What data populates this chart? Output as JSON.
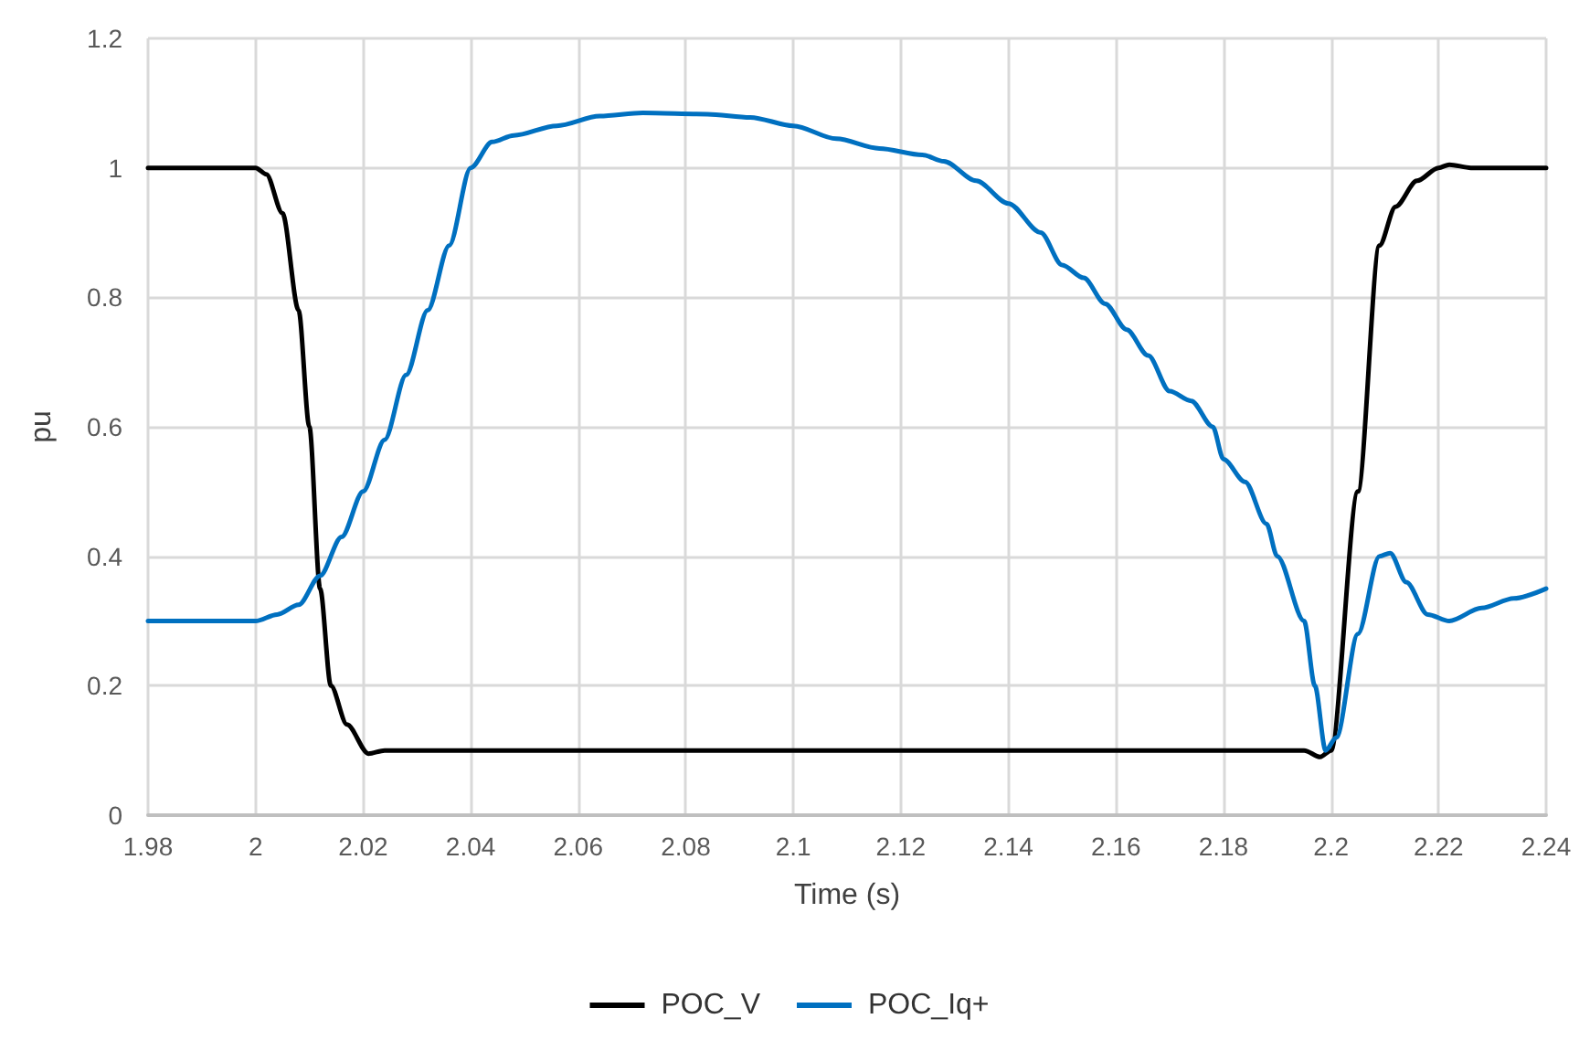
{
  "chart_data": {
    "type": "line",
    "xlabel": "Time (s)",
    "ylabel": "pu",
    "xlim": [
      1.98,
      2.24
    ],
    "xticks": [
      1.98,
      2,
      2.02,
      2.04,
      2.06,
      2.08,
      2.1,
      2.12,
      2.14,
      2.16,
      2.18,
      2.2,
      2.22,
      2.24
    ],
    "ylim": [
      0,
      1.2
    ],
    "yticks": [
      0,
      0.2,
      0.4,
      0.6,
      0.8,
      1,
      1.2
    ],
    "grid": true,
    "legend": "bottom",
    "marker": "none",
    "line_style": "solid",
    "series": [
      {
        "name": "POC_V",
        "color": "#000000",
        "x": [
          1.98,
          2.0,
          2.002,
          2.005,
          2.008,
          2.01,
          2.012,
          2.014,
          2.017,
          2.021,
          2.024,
          2.19,
          2.195,
          2.198,
          2.2,
          2.205,
          2.209,
          2.212,
          2.216,
          2.22,
          2.222,
          2.226,
          2.24
        ],
        "values": [
          1.0,
          1.0,
          0.99,
          0.93,
          0.78,
          0.6,
          0.35,
          0.2,
          0.14,
          0.095,
          0.1,
          0.1,
          0.1,
          0.09,
          0.1,
          0.5,
          0.88,
          0.94,
          0.98,
          1.0,
          1.005,
          1.0,
          1.0
        ]
      },
      {
        "name": "POC_Iq+",
        "color": "#0070c0",
        "x": [
          1.98,
          2.0,
          2.004,
          2.008,
          2.012,
          2.016,
          2.02,
          2.024,
          2.028,
          2.032,
          2.036,
          2.04,
          2.044,
          2.048,
          2.056,
          2.064,
          2.072,
          2.084,
          2.092,
          2.1,
          2.108,
          2.116,
          2.124,
          2.128,
          2.134,
          2.14,
          2.146,
          2.15,
          2.154,
          2.158,
          2.162,
          2.166,
          2.17,
          2.174,
          2.178,
          2.18,
          2.184,
          2.188,
          2.19,
          2.195,
          2.197,
          2.199,
          2.201,
          2.205,
          2.209,
          2.211,
          2.214,
          2.218,
          2.222,
          2.228,
          2.234,
          2.24
        ],
        "values": [
          0.3,
          0.3,
          0.31,
          0.325,
          0.37,
          0.43,
          0.5,
          0.58,
          0.68,
          0.78,
          0.88,
          1.0,
          1.04,
          1.05,
          1.065,
          1.08,
          1.085,
          1.083,
          1.078,
          1.065,
          1.045,
          1.03,
          1.02,
          1.01,
          0.98,
          0.945,
          0.9,
          0.85,
          0.83,
          0.79,
          0.75,
          0.71,
          0.655,
          0.64,
          0.6,
          0.55,
          0.515,
          0.45,
          0.4,
          0.3,
          0.2,
          0.1,
          0.12,
          0.28,
          0.4,
          0.405,
          0.36,
          0.31,
          0.3,
          0.32,
          0.335,
          0.35
        ]
      }
    ]
  }
}
